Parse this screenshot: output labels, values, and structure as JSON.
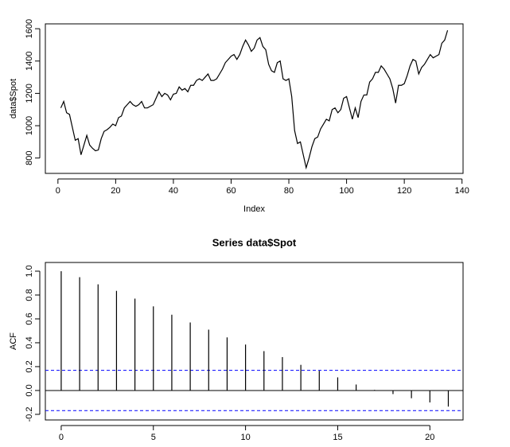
{
  "chart_data": [
    {
      "type": "line",
      "xlabel": "Index",
      "ylabel": "data$Spot",
      "color": "#000000",
      "x": [
        1,
        2,
        3,
        4,
        5,
        6,
        7,
        8,
        9,
        10,
        11,
        12,
        13,
        14,
        15,
        16,
        17,
        18,
        19,
        20,
        21,
        22,
        23,
        24,
        25,
        26,
        27,
        28,
        29,
        30,
        31,
        32,
        33,
        34,
        35,
        36,
        37,
        38,
        39,
        40,
        41,
        42,
        43,
        44,
        45,
        46,
        47,
        48,
        49,
        50,
        51,
        52,
        53,
        54,
        55,
        56,
        57,
        58,
        59,
        60,
        61,
        62,
        63,
        64,
        65,
        66,
        67,
        68,
        69,
        70,
        71,
        72,
        73,
        74,
        75,
        76,
        77,
        78,
        79,
        80,
        81,
        82,
        83,
        84,
        85,
        86,
        87,
        88,
        89,
        90,
        91,
        92,
        93,
        94,
        95,
        96,
        97,
        98,
        99,
        100,
        101,
        102,
        103,
        104,
        105,
        106,
        107,
        108,
        109,
        110,
        111,
        112,
        113,
        114,
        115,
        116,
        117,
        118,
        119,
        120,
        121,
        122,
        123,
        124,
        125,
        126,
        127,
        128,
        129,
        130,
        131,
        132,
        133,
        134,
        135
      ],
      "values": [
        1110,
        1150,
        1080,
        1070,
        990,
        910,
        920,
        820,
        880,
        940,
        880,
        860,
        845,
        850,
        920,
        965,
        975,
        990,
        1010,
        1000,
        1050,
        1060,
        1110,
        1130,
        1150,
        1130,
        1120,
        1130,
        1150,
        1110,
        1110,
        1120,
        1130,
        1170,
        1210,
        1180,
        1200,
        1190,
        1160,
        1195,
        1200,
        1240,
        1220,
        1230,
        1210,
        1250,
        1250,
        1280,
        1290,
        1280,
        1300,
        1320,
        1280,
        1280,
        1290,
        1320,
        1350,
        1390,
        1410,
        1430,
        1440,
        1410,
        1440,
        1490,
        1530,
        1500,
        1460,
        1480,
        1530,
        1545,
        1490,
        1470,
        1380,
        1340,
        1330,
        1390,
        1400,
        1290,
        1280,
        1290,
        1180,
        970,
        890,
        900,
        820,
        740,
        800,
        870,
        920,
        930,
        980,
        1010,
        1040,
        1030,
        1100,
        1110,
        1080,
        1100,
        1170,
        1180,
        1110,
        1040,
        1110,
        1050,
        1150,
        1190,
        1190,
        1270,
        1290,
        1330,
        1330,
        1370,
        1350,
        1320,
        1290,
        1230,
        1140,
        1250,
        1250,
        1260,
        1310,
        1370,
        1410,
        1400,
        1320,
        1360,
        1380,
        1410,
        1440,
        1420,
        1430,
        1440,
        1510,
        1530,
        1590
      ],
      "xlim": [
        -4.36,
        140.36
      ],
      "xticks": [
        0,
        20,
        40,
        60,
        80,
        100,
        120,
        140
      ],
      "ylim": [
        705,
        1630
      ],
      "yticks": [
        800,
        1000,
        1200,
        1400,
        1600
      ]
    },
    {
      "type": "acf",
      "title": "Series  data$Spot",
      "ylabel": "ACF",
      "color": "#000000",
      "x": [
        0,
        1,
        2,
        3,
        4,
        5,
        6,
        7,
        8,
        9,
        10,
        11,
        12,
        13,
        14,
        15,
        16,
        17,
        18,
        19,
        20,
        21
      ],
      "values": [
        1.0,
        0.95,
        0.89,
        0.835,
        0.77,
        0.705,
        0.635,
        0.57,
        0.51,
        0.445,
        0.385,
        0.33,
        0.28,
        0.215,
        0.165,
        0.11,
        0.05,
        0.005,
        -0.03,
        -0.065,
        -0.1,
        -0.135
      ],
      "ci": {
        "values": [
          0.169,
          -0.169
        ],
        "color": "#0000ff"
      },
      "xlim": [
        -0.86,
        21.8
      ],
      "xticks": [
        0,
        5,
        10,
        15,
        20
      ],
      "ylim": [
        -0.247,
        1.073
      ],
      "yticks": [
        {
          "value": -0.2,
          "label": "-0.2"
        },
        {
          "value": 0,
          "label": "0.0"
        },
        0.2,
        0.4,
        0.6,
        0.8,
        {
          "value": 1,
          "label": "1.0"
        }
      ]
    }
  ]
}
